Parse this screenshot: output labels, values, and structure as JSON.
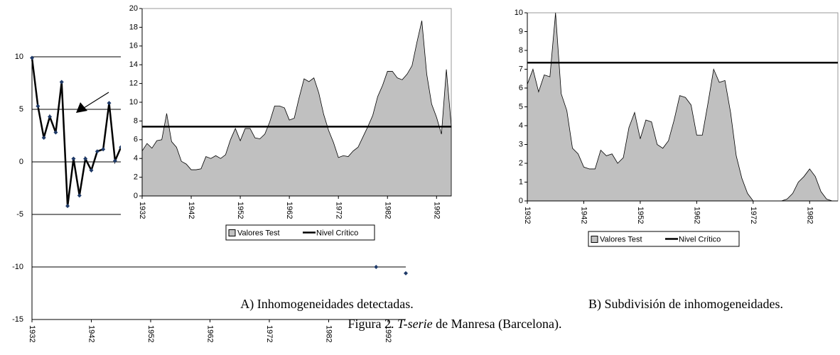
{
  "chart_data": [
    {
      "type": "line",
      "x": [
        1932,
        1933,
        1934,
        1935,
        1936,
        1937,
        1938,
        1939,
        1940,
        1941,
        1942,
        1943,
        1944,
        1945,
        1946,
        1947,
        1948,
        1990,
        1991,
        1995
      ],
      "values": [
        9.9,
        5.3,
        2.3,
        4.3,
        2.8,
        7.6,
        -4.2,
        0.3,
        -3.2,
        0.3,
        -0.8,
        1.0,
        1.2,
        5.6,
        0.1,
        1.4,
        null,
        -10,
        null,
        -10.6
      ],
      "color": "#000000",
      "marker_color": "#1f3a68",
      "xlim": [
        1932,
        1995
      ],
      "xticks": [
        1932,
        1942,
        1952,
        1962,
        1972,
        1982,
        1992
      ],
      "ylim": [
        -15,
        10
      ],
      "yticks": [
        -15,
        -10,
        -5,
        0,
        5,
        10
      ],
      "grid": true
    },
    {
      "type": "area",
      "x": [
        1932,
        1933,
        1934,
        1935,
        1936,
        1937,
        1938,
        1939,
        1940,
        1941,
        1942,
        1943,
        1944,
        1945,
        1946,
        1947,
        1948,
        1949,
        1950,
        1951,
        1952,
        1953,
        1954,
        1955,
        1956,
        1957,
        1958,
        1959,
        1960,
        1961,
        1962,
        1963,
        1964,
        1965,
        1966,
        1967,
        1968,
        1969,
        1970,
        1971,
        1972,
        1973,
        1974,
        1975,
        1976,
        1977,
        1978,
        1979,
        1980,
        1981,
        1982,
        1983,
        1984,
        1985,
        1986,
        1987,
        1988,
        1989,
        1990,
        1991,
        1992,
        1993,
        1994,
        1995
      ],
      "series": [
        {
          "name": "Valores Test",
          "color": "#c0c0c0",
          "values": [
            4.8,
            5.6,
            5.1,
            5.9,
            6.0,
            8.8,
            5.8,
            5.2,
            3.7,
            3.4,
            2.8,
            2.8,
            2.9,
            4.2,
            4.0,
            4.3,
            4.0,
            4.4,
            6.0,
            7.2,
            5.9,
            7.2,
            7.2,
            6.2,
            6.1,
            6.6,
            7.9,
            9.6,
            9.6,
            9.4,
            8.1,
            8.3,
            10.5,
            12.5,
            12.2,
            12.6,
            11.0,
            8.7,
            7.0,
            5.7,
            4.1,
            4.3,
            4.2,
            4.8,
            5.2,
            6.3,
            7.4,
            8.6,
            10.6,
            11.8,
            13.3,
            13.3,
            12.6,
            12.4,
            13.0,
            13.9,
            16.4,
            18.7,
            13.0,
            9.8,
            8.4,
            6.6,
            13.5,
            7.5
          ]
        },
        {
          "name": "Nivel Crítico",
          "color": "#000000",
          "value": 7.4
        }
      ],
      "xlim": [
        1932,
        1995
      ],
      "xticks": [
        1932,
        1942,
        1952,
        1962,
        1972,
        1982,
        1992
      ],
      "ylim": [
        0,
        20
      ],
      "yticks": [
        0,
        2,
        4,
        6,
        8,
        10,
        12,
        14,
        16,
        18,
        20
      ],
      "grid": false
    },
    {
      "type": "area",
      "x": [
        1932,
        1933,
        1934,
        1935,
        1936,
        1937,
        1938,
        1939,
        1940,
        1941,
        1942,
        1943,
        1944,
        1945,
        1946,
        1947,
        1948,
        1949,
        1950,
        1951,
        1952,
        1953,
        1954,
        1955,
        1956,
        1957,
        1958,
        1959,
        1960,
        1961,
        1962,
        1963,
        1964,
        1965,
        1966,
        1967,
        1968,
        1969,
        1970,
        1971,
        1972,
        1973,
        1974,
        1975,
        1976,
        1977,
        1978,
        1979,
        1980,
        1981,
        1982,
        1983,
        1984,
        1985,
        1986,
        1987
      ],
      "series": [
        {
          "name": "Valores Test",
          "color": "#c0c0c0",
          "values": [
            6.2,
            7.0,
            5.8,
            6.7,
            6.6,
            10.0,
            5.7,
            4.8,
            2.8,
            2.5,
            1.8,
            1.7,
            1.7,
            2.7,
            2.4,
            2.5,
            2.0,
            2.3,
            3.9,
            4.7,
            3.3,
            4.3,
            4.2,
            3.0,
            2.8,
            3.2,
            4.3,
            5.6,
            5.5,
            5.1,
            3.5,
            3.5,
            5.2,
            7.0,
            6.3,
            6.4,
            4.7,
            2.4,
            1.2,
            0.4,
            0,
            0,
            0,
            0,
            0,
            0,
            0.1,
            0.4,
            1.0,
            1.3,
            1.7,
            1.3,
            0.5,
            0.1,
            0,
            0
          ]
        },
        {
          "name": "Nivel Crítico",
          "color": "#000000",
          "value": 7.35
        }
      ],
      "xlim": [
        1932,
        1987
      ],
      "xticks": [
        1932,
        1942,
        1952,
        1962,
        1972,
        1982
      ],
      "ylim": [
        0,
        10
      ],
      "yticks": [
        0,
        1,
        2,
        3,
        4,
        5,
        6,
        7,
        8,
        9,
        10
      ],
      "grid": false
    }
  ],
  "captions": {
    "a": "A) Inhomogeneidades detectadas.",
    "b": "B) Subdivisión de inhomogeneidades.",
    "figure": [
      "Figura 2. ",
      "T-serie",
      " de Manresa (Barcelona)."
    ]
  }
}
